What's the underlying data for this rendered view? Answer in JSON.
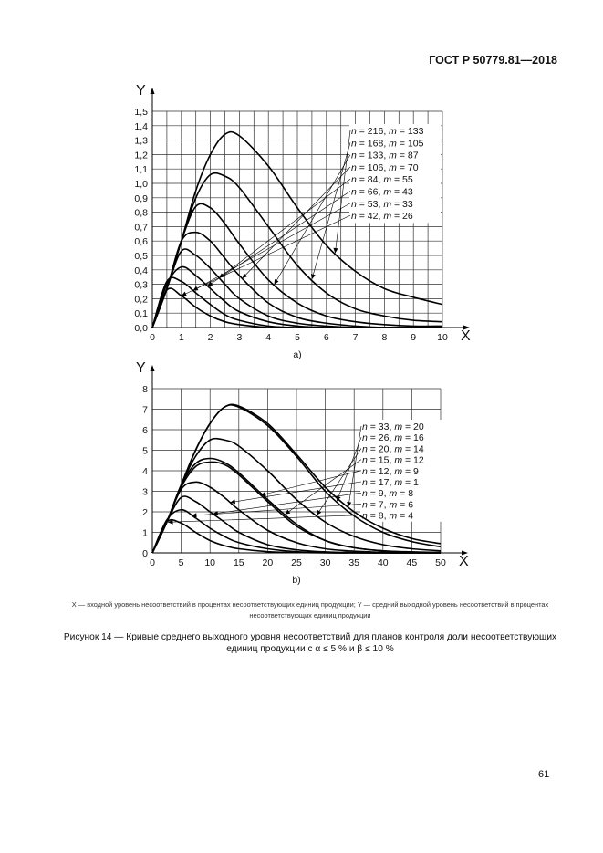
{
  "header": {
    "standard": "ГОСТ Р 50779.81—2018"
  },
  "chart_data": [
    {
      "type": "line",
      "panel_label": "а)",
      "xlabel": "X",
      "ylabel": "Y",
      "xlim": [
        0,
        10
      ],
      "ylim": [
        0,
        1.5
      ],
      "x_ticks": [
        "0",
        "1",
        "2",
        "3",
        "4",
        "5",
        "6",
        "7",
        "8",
        "9",
        "10"
      ],
      "y_ticks": [
        "0,0",
        "0,1",
        "0,2",
        "0,3",
        "0,4",
        "0,5",
        "0,6",
        "0,7",
        "0,8",
        "0,9",
        "1,0",
        "1,1",
        "1,2",
        "1,3",
        "1,4",
        "1,5"
      ],
      "grid": true,
      "legend_placement": "top-right",
      "x": [
        0,
        0.5,
        1,
        1.5,
        2,
        2.5,
        3,
        4,
        5,
        6,
        7,
        8,
        9,
        10
      ],
      "series": [
        {
          "name": "n = 216, m = 133",
          "values": [
            0,
            0.27,
            0.6,
            0.95,
            1.2,
            1.34,
            1.33,
            1.12,
            0.83,
            0.57,
            0.39,
            0.27,
            0.21,
            0.16
          ]
        },
        {
          "name": "n = 168, m = 105",
          "values": [
            0,
            0.27,
            0.6,
            0.9,
            1.06,
            1.05,
            0.97,
            0.7,
            0.43,
            0.24,
            0.13,
            0.08,
            0.05,
            0.04
          ]
        },
        {
          "name": "n = 133, m = 87",
          "values": [
            0,
            0.27,
            0.6,
            0.84,
            0.83,
            0.72,
            0.58,
            0.33,
            0.17,
            0.08,
            0.04,
            0.02,
            0.01,
            0.01
          ]
        },
        {
          "name": "n = 106, m = 70",
          "values": [
            0,
            0.27,
            0.6,
            0.66,
            0.6,
            0.48,
            0.36,
            0.17,
            0.07,
            0.03,
            0.01,
            0,
            0,
            0
          ]
        },
        {
          "name": "n = 84, m = 55",
          "values": [
            0,
            0.27,
            0.53,
            0.5,
            0.41,
            0.3,
            0.2,
            0.08,
            0.03,
            0.01,
            0,
            0,
            0,
            0
          ]
        },
        {
          "name": "n = 66, m = 43",
          "values": [
            0,
            0.3,
            0.42,
            0.36,
            0.27,
            0.18,
            0.11,
            0.04,
            0.01,
            0,
            0,
            0,
            0,
            0
          ]
        },
        {
          "name": "n = 53, m = 33",
          "values": [
            0,
            0.32,
            0.32,
            0.24,
            0.16,
            0.09,
            0.05,
            0.01,
            0,
            0,
            0,
            0,
            0,
            0
          ]
        },
        {
          "name": "n = 42, m = 26",
          "values": [
            0,
            0.26,
            0.22,
            0.14,
            0.08,
            0.04,
            0.02,
            0,
            0,
            0,
            0,
            0,
            0,
            0
          ]
        }
      ]
    },
    {
      "type": "line",
      "panel_label": "b)",
      "xlabel": "X",
      "ylabel": "Y",
      "xlim": [
        0,
        50
      ],
      "ylim": [
        0,
        8
      ],
      "x_ticks": [
        "0",
        "5",
        "10",
        "15",
        "20",
        "25",
        "30",
        "35",
        "40",
        "45",
        "50"
      ],
      "y_ticks": [
        "0",
        "1",
        "2",
        "3",
        "4",
        "5",
        "6",
        "7",
        "8"
      ],
      "grid": true,
      "legend_placement": "top-right",
      "x": [
        0,
        2.5,
        5,
        7.5,
        10,
        12.5,
        15,
        20,
        25,
        30,
        35,
        40,
        45,
        50
      ],
      "series": [
        {
          "name": "n = 33, m = 20",
          "values": [
            0,
            1.5,
            3.3,
            5.0,
            6.3,
            7.1,
            7.15,
            6.3,
            4.8,
            3.2,
            2.0,
            1.2,
            0.7,
            0.45
          ]
        },
        {
          "name": "n = 26, m = 16",
          "values": [
            0,
            1.5,
            3.3,
            5.0,
            6.3,
            7.1,
            7.1,
            6.2,
            4.7,
            3.0,
            1.8,
            1.0,
            0.55,
            0.3
          ]
        },
        {
          "name": "n = 20, m = 14",
          "values": [
            0,
            1.5,
            3.3,
            4.7,
            5.5,
            5.5,
            5.2,
            4.0,
            2.6,
            1.5,
            0.8,
            0.4,
            0.2,
            0.1
          ]
        },
        {
          "name": "n = 15, m = 12",
          "values": [
            0,
            1.5,
            3.3,
            4.35,
            4.6,
            4.4,
            3.9,
            2.6,
            1.4,
            0.6,
            0.25,
            0.1,
            0.05,
            0.02
          ]
        },
        {
          "name": "n = 12, m = 9",
          "values": [
            0,
            1.5,
            3.2,
            4.2,
            4.42,
            4.3,
            3.8,
            2.5,
            1.3,
            0.6,
            0.25,
            0.1,
            0.04,
            0.02
          ]
        },
        {
          "name": "n = 17, m = 1",
          "values": [
            0,
            1.5,
            3.1,
            3.45,
            3.2,
            2.7,
            2.1,
            1.1,
            0.5,
            0.2,
            0.08,
            0.03,
            0.01,
            0
          ]
        },
        {
          "name": "n = 9, m = 8",
          "values": [
            0,
            1.5,
            2.7,
            2.5,
            2.0,
            1.5,
            1.0,
            0.4,
            0.15,
            0.05,
            0.02,
            0,
            0,
            0
          ]
        },
        {
          "name": "n = 7, m = 6",
          "values": [
            0,
            1.6,
            2.1,
            1.7,
            1.2,
            0.8,
            0.5,
            0.2,
            0.06,
            0.02,
            0,
            0,
            0,
            0
          ]
        },
        {
          "name": "n = 8, m = 4",
          "values": [
            0,
            1.5,
            1.45,
            1.0,
            0.6,
            0.35,
            0.2,
            0.06,
            0.02,
            0,
            0,
            0,
            0,
            0
          ]
        }
      ]
    }
  ],
  "legend_note": "X — входной уровень несоответствий в процентах несоответствующих единиц продукции; Y — средний выходной уровень несоответствий в процентах несоответствующих единиц продукции",
  "caption": "Рисунок 14 — Кривые среднего выходного уровня несоответствий для планов контроля доли несоответствующих единиц продукции с α ≤ 5 % и β ≤ 10 %",
  "page_number": "61"
}
